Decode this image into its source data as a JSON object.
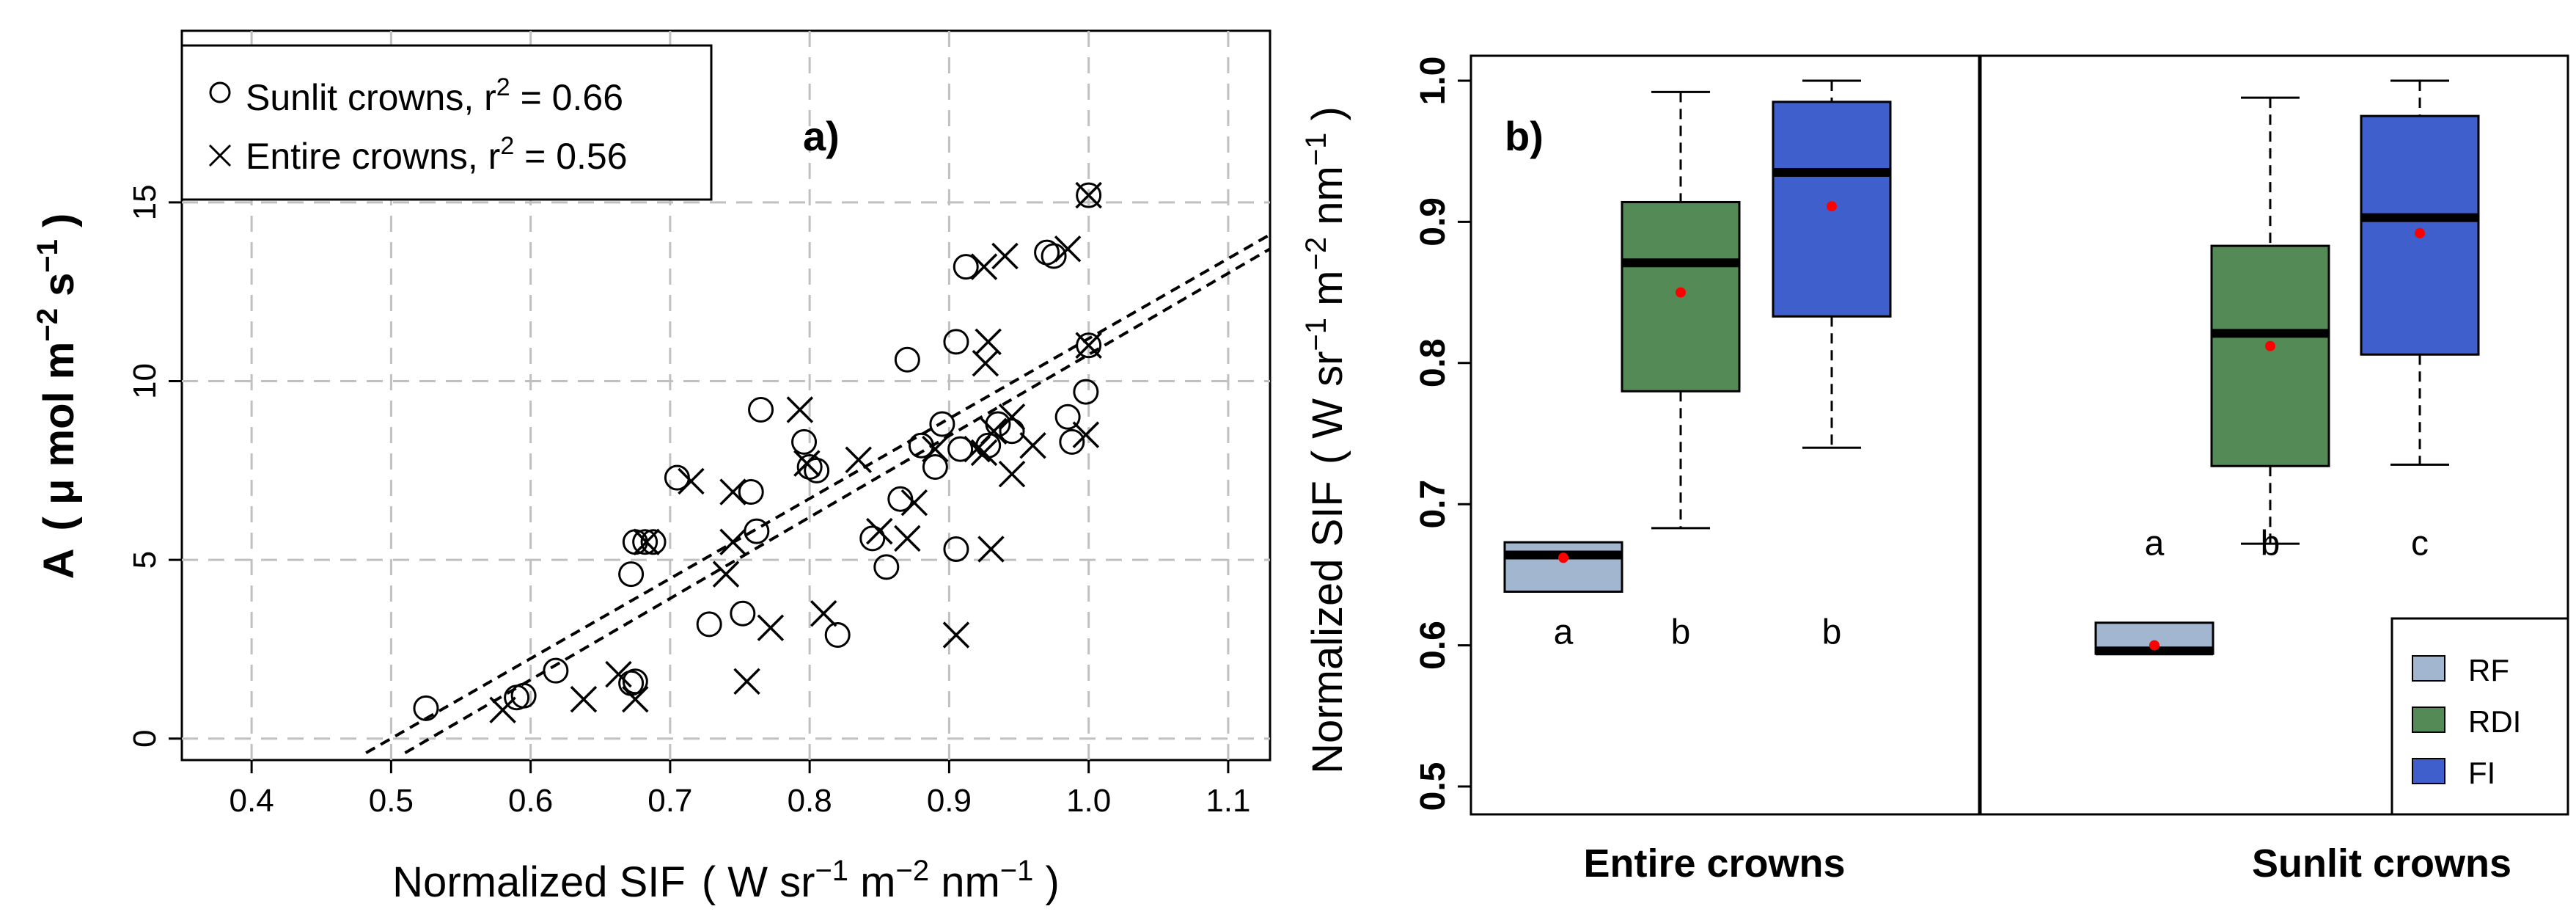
{
  "chart_data": [
    {
      "id": "a",
      "type": "scatter",
      "panel_label": "a)",
      "xlabel": {
        "main": "Normalized SIF",
        "unit_pre": "( W sr",
        "exp1": "−1",
        "unit_mid": " m",
        "exp2": "−2",
        "unit_mid2": " nm",
        "exp3": "−1",
        "unit_post": " )"
      },
      "ylabel": {
        "main": "A",
        "unit_pre": "( μ mol m",
        "exp1": "−2",
        "unit_mid": " s",
        "exp2": "−1",
        "unit_post": " )"
      },
      "xlim": [
        0.35,
        1.13
      ],
      "ylim": [
        -0.6,
        19.8
      ],
      "xticks": [
        "0.4",
        "0.5",
        "0.6",
        "0.7",
        "0.8",
        "0.9",
        "1.0",
        "1.1"
      ],
      "xtick_values": [
        0.4,
        0.5,
        0.6,
        0.7,
        0.8,
        0.9,
        1.0,
        1.1
      ],
      "yticks": [
        "0",
        "5",
        "10",
        "15"
      ],
      "ytick_values": [
        0,
        5,
        10,
        15
      ],
      "grid": true,
      "legend": {
        "position": "top-left",
        "entries": [
          {
            "marker": "circle",
            "label": "Sunlit crowns, r",
            "sup": "2",
            "suffix": " = 0.66"
          },
          {
            "marker": "x",
            "label": "Entire crowns, r",
            "sup": "2",
            "suffix": " = 0.56"
          }
        ]
      },
      "series": [
        {
          "name": "Sunlit crowns",
          "marker": "circle",
          "points": [
            [
              0.525,
              0.85
            ],
            [
              0.59,
              1.15
            ],
            [
              0.595,
              1.2
            ],
            [
              0.618,
              1.9
            ],
            [
              0.672,
              1.55
            ],
            [
              0.675,
              1.6
            ],
            [
              0.672,
              4.6
            ],
            [
              0.675,
              5.5
            ],
            [
              0.682,
              5.5
            ],
            [
              0.688,
              5.5
            ],
            [
              0.705,
              7.3
            ],
            [
              0.728,
              3.2
            ],
            [
              0.752,
              3.5
            ],
            [
              0.758,
              6.9
            ],
            [
              0.762,
              5.8
            ],
            [
              0.765,
              9.2
            ],
            [
              0.796,
              8.3
            ],
            [
              0.8,
              7.6
            ],
            [
              0.805,
              7.5
            ],
            [
              0.82,
              2.9
            ],
            [
              0.845,
              5.6
            ],
            [
              0.855,
              4.8
            ],
            [
              0.865,
              6.7
            ],
            [
              0.87,
              10.6
            ],
            [
              0.88,
              8.2
            ],
            [
              0.89,
              7.6
            ],
            [
              0.895,
              8.8
            ],
            [
              0.905,
              5.3
            ],
            [
              0.905,
              11.1
            ],
            [
              0.908,
              8.1
            ],
            [
              0.912,
              13.2
            ],
            [
              0.928,
              8.2
            ],
            [
              0.935,
              8.8
            ],
            [
              0.945,
              8.6
            ],
            [
              0.97,
              13.6
            ],
            [
              0.975,
              13.5
            ],
            [
              0.985,
              9.0
            ],
            [
              0.988,
              8.3
            ],
            [
              0.998,
              9.7
            ],
            [
              1.0,
              11.0
            ],
            [
              1.0,
              15.2
            ]
          ]
        },
        {
          "name": "Entire crowns",
          "marker": "x",
          "points": [
            [
              0.58,
              0.8
            ],
            [
              0.638,
              1.1
            ],
            [
              0.663,
              1.8
            ],
            [
              0.675,
              1.1
            ],
            [
              0.683,
              5.5
            ],
            [
              0.715,
              7.2
            ],
            [
              0.74,
              4.6
            ],
            [
              0.745,
              5.5
            ],
            [
              0.745,
              6.9
            ],
            [
              0.755,
              1.6
            ],
            [
              0.772,
              3.1
            ],
            [
              0.793,
              9.2
            ],
            [
              0.798,
              7.7
            ],
            [
              0.81,
              3.5
            ],
            [
              0.835,
              7.8
            ],
            [
              0.85,
              5.8
            ],
            [
              0.87,
              5.6
            ],
            [
              0.875,
              6.6
            ],
            [
              0.89,
              8.1
            ],
            [
              0.905,
              2.9
            ],
            [
              0.92,
              8.1
            ],
            [
              0.925,
              8.0
            ],
            [
              0.925,
              13.2
            ],
            [
              0.926,
              10.5
            ],
            [
              0.928,
              11.1
            ],
            [
              0.93,
              5.3
            ],
            [
              0.932,
              8.6
            ],
            [
              0.94,
              13.5
            ],
            [
              0.945,
              7.4
            ],
            [
              0.945,
              9.0
            ],
            [
              0.96,
              8.2
            ],
            [
              0.985,
              13.7
            ],
            [
              0.998,
              8.5
            ],
            [
              1.0,
              11.0
            ],
            [
              1.0,
              15.2
            ]
          ]
        }
      ],
      "fit_lines": [
        {
          "name": "Sunlit fit",
          "x": [
            0.482,
            1.13
          ],
          "y": [
            -0.4,
            14.1
          ]
        },
        {
          "name": "Entire fit",
          "x": [
            0.51,
            1.13
          ],
          "y": [
            -0.4,
            13.7
          ]
        }
      ]
    },
    {
      "id": "b",
      "type": "box",
      "panel_label": "b)",
      "ylabel": {
        "main": "Normalized SIF",
        "unit_pre": "( W sr",
        "exp1": "−1",
        "unit_mid": " m",
        "exp2": "−2",
        "unit_mid2": " nm",
        "exp3": "−1",
        "unit_post": " )"
      },
      "ylim": [
        0.5,
        1.0
      ],
      "yticks": [
        "0.5",
        "0.6",
        "0.7",
        "0.8",
        "0.9",
        "1.0"
      ],
      "ytick_values": [
        0.5,
        0.6,
        0.7,
        0.8,
        0.9,
        1.0
      ],
      "groups": [
        {
          "label": "Entire crowns",
          "boxes": [
            {
              "class": "RF",
              "whisker_low": null,
              "q1": 0.638,
              "median": 0.664,
              "q3": 0.673,
              "whisker_high": null,
              "mean": 0.662,
              "letter": "a",
              "letter_y": 0.601
            },
            {
              "class": "RDI",
              "whisker_low": 0.683,
              "q1": 0.78,
              "median": 0.871,
              "q3": 0.914,
              "whisker_high": 0.992,
              "mean": 0.85,
              "letter": "b",
              "letter_y": 0.601
            },
            {
              "class": "FI",
              "whisker_low": 0.74,
              "q1": 0.833,
              "median": 0.935,
              "q3": 0.985,
              "whisker_high": 1.0,
              "mean": 0.911,
              "letter": "b",
              "letter_y": 0.601
            }
          ]
        },
        {
          "label": "Sunlit crowns",
          "boxes": [
            {
              "class": "RF",
              "whisker_low": null,
              "q1": 0.594,
              "median": 0.596,
              "q3": 0.616,
              "whisker_high": null,
              "mean": 0.6,
              "letter": "a",
              "letter_y": 0.664
            },
            {
              "class": "RDI",
              "whisker_low": 0.672,
              "q1": 0.727,
              "median": 0.821,
              "q3": 0.883,
              "whisker_high": 0.988,
              "mean": 0.812,
              "letter": "b",
              "letter_y": 0.664
            },
            {
              "class": "FI",
              "whisker_low": 0.728,
              "q1": 0.806,
              "median": 0.903,
              "q3": 0.975,
              "whisker_high": 1.0,
              "mean": 0.892,
              "letter": "c",
              "letter_y": 0.664
            }
          ]
        }
      ],
      "legend": {
        "position": "bottom-right",
        "entries": [
          {
            "label": "RF",
            "color": "#a3b6cf"
          },
          {
            "label": "RDI",
            "color": "#538a55"
          },
          {
            "label": "FI",
            "color": "#3e5fcc"
          }
        ]
      },
      "mean_color": "#ff0000"
    }
  ]
}
